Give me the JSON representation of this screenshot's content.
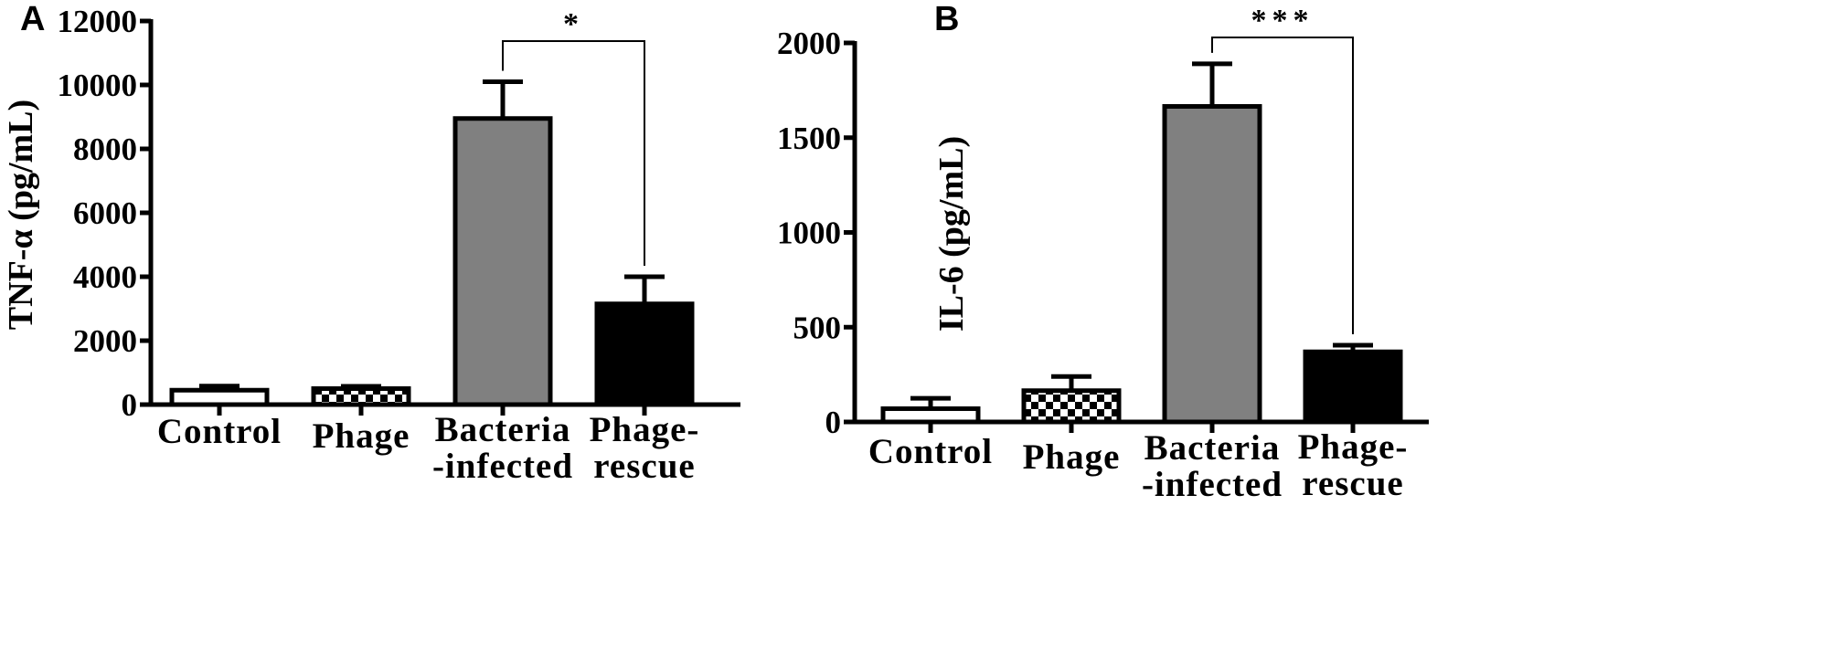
{
  "colors": {
    "axis": "#000000",
    "control_fill": "#ffffff",
    "bacteria_fill": "#808080",
    "rescue_fill": "#000000",
    "phage_pattern": "checkerboard"
  },
  "chart_data": [
    {
      "type": "bar",
      "panel_label": "A",
      "ylabel": "TNF-α (pg/mL)",
      "ylim": [
        0,
        12000
      ],
      "yticks": [
        "0",
        "2000",
        "4000",
        "6000",
        "8000",
        "10000",
        "12000"
      ],
      "categories": [
        [
          "Control"
        ],
        [
          "Phage"
        ],
        [
          "Bacteria",
          "-infected"
        ],
        [
          "Phage-",
          "rescue"
        ]
      ],
      "values": [
        450,
        500,
        8950,
        3150
      ],
      "errors": [
        130,
        70,
        1150,
        850
      ],
      "significance": {
        "from": 2,
        "to": 3,
        "label": "*"
      }
    },
    {
      "type": "bar",
      "panel_label": "B",
      "ylabel": "IL-6 (pg/mL)",
      "ylim": [
        0,
        2000
      ],
      "yticks": [
        "0",
        "500",
        "1000",
        "1500",
        "2000"
      ],
      "categories": [
        [
          "Control"
        ],
        [
          "Phage"
        ],
        [
          "Bacteria",
          "-infected"
        ],
        [
          "Phage-",
          "rescue"
        ]
      ],
      "values": [
        70,
        165,
        1665,
        370
      ],
      "errors": [
        55,
        75,
        225,
        35
      ],
      "significance": {
        "from": 2,
        "to": 3,
        "label": "***"
      }
    }
  ]
}
